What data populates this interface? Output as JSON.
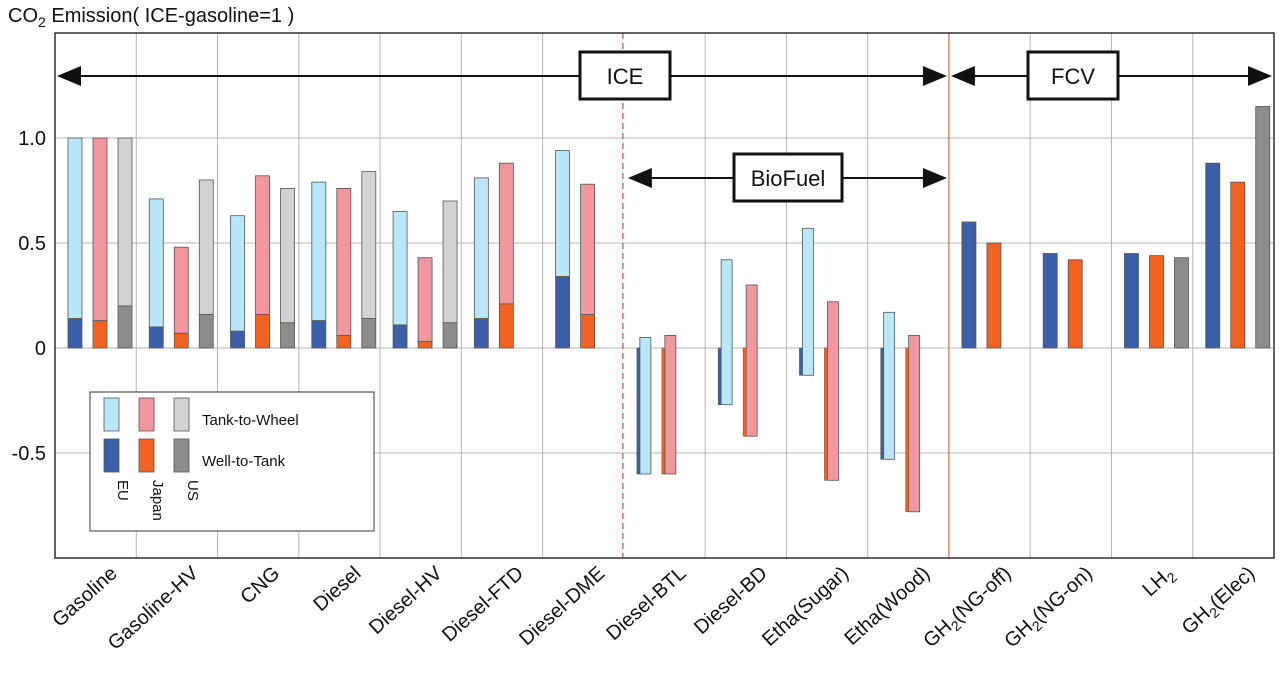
{
  "colors": {
    "eu_ttw": "#b9e6f8",
    "eu_wtt": "#3c5fa9",
    "jp_ttw": "#f2979d",
    "jp_wtt": "#f26322",
    "us_ttw": "#d2d2d2",
    "us_wtt": "#8c8c8c",
    "grid": "#b5b5b5",
    "separator": "#d9412f"
  },
  "chart_data": {
    "type": "bar",
    "title_prefix": "CO",
    "title_sub": "2",
    "title_suffix": " Emission( ICE-gasoline=1 )",
    "ylim": [
      -1.0,
      1.5
    ],
    "yticks": [
      {
        "value": 1.0,
        "label": "1.0"
      },
      {
        "value": 0.5,
        "label": "0.5"
      },
      {
        "value": 0,
        "label": "0"
      },
      {
        "value": -0.5,
        "label": "-0.5"
      }
    ],
    "categories": [
      {
        "pre": "Gasoline",
        "sub": "",
        "post": ""
      },
      {
        "pre": "Gasoline-HV",
        "sub": "",
        "post": ""
      },
      {
        "pre": "CNG",
        "sub": "",
        "post": ""
      },
      {
        "pre": "Diesel",
        "sub": "",
        "post": ""
      },
      {
        "pre": "Diesel-HV",
        "sub": "",
        "post": ""
      },
      {
        "pre": "Diesel-FTD",
        "sub": "",
        "post": ""
      },
      {
        "pre": "Diesel-DME",
        "sub": "",
        "post": ""
      },
      {
        "pre": "Diesel-BTL",
        "sub": "",
        "post": ""
      },
      {
        "pre": "Diesel-BD",
        "sub": "",
        "post": ""
      },
      {
        "pre": "Etha(Sugar)",
        "sub": "",
        "post": ""
      },
      {
        "pre": "Etha(Wood)",
        "sub": "",
        "post": ""
      },
      {
        "pre": "GH",
        "sub": "2",
        "post": "(NG-off)"
      },
      {
        "pre": "GH",
        "sub": "2",
        "post": "(NG-on)"
      },
      {
        "pre": "LH",
        "sub": "2",
        "post": ""
      },
      {
        "pre": "GH",
        "sub": "2",
        "post": "(Elec)"
      }
    ],
    "regions": [
      "EU",
      "Japan",
      "US"
    ],
    "components": [
      "Well-to-Tank",
      "Tank-to-Wheel"
    ],
    "bars": [
      [
        {
          "wtt": 0.14,
          "total": 1.0
        },
        {
          "wtt": 0.13,
          "total": 1.0
        },
        {
          "wtt": 0.2,
          "total": 1.0
        }
      ],
      [
        {
          "wtt": 0.1,
          "total": 0.71
        },
        {
          "wtt": 0.07,
          "total": 0.48
        },
        {
          "wtt": 0.16,
          "total": 0.8
        }
      ],
      [
        {
          "wtt": 0.08,
          "total": 0.63
        },
        {
          "wtt": 0.16,
          "total": 0.82
        },
        {
          "wtt": 0.12,
          "total": 0.76
        }
      ],
      [
        {
          "wtt": 0.13,
          "total": 0.79
        },
        {
          "wtt": 0.06,
          "total": 0.76
        },
        {
          "wtt": 0.14,
          "total": 0.84
        }
      ],
      [
        {
          "wtt": 0.11,
          "total": 0.65
        },
        {
          "wtt": 0.03,
          "total": 0.43
        },
        {
          "wtt": 0.12,
          "total": 0.7
        }
      ],
      [
        {
          "wtt": 0.14,
          "total": 0.81
        },
        {
          "wtt": 0.21,
          "total": 0.88
        },
        null
      ],
      [
        {
          "wtt": 0.34,
          "total": 0.94
        },
        {
          "wtt": 0.16,
          "total": 0.78
        },
        null
      ],
      [
        {
          "wtt": -0.6,
          "total": 0.05
        },
        {
          "wtt": -0.6,
          "total": 0.06
        },
        null
      ],
      [
        {
          "wtt": -0.27,
          "total": 0.42
        },
        {
          "wtt": -0.42,
          "total": 0.3
        },
        null
      ],
      [
        {
          "wtt": -0.13,
          "total": 0.57
        },
        {
          "wtt": -0.63,
          "total": 0.22
        },
        null
      ],
      [
        {
          "wtt": -0.53,
          "total": 0.17
        },
        {
          "wtt": -0.78,
          "total": 0.06
        },
        null
      ],
      [
        {
          "wtt": 0.6,
          "total": 0.6
        },
        {
          "wtt": 0.5,
          "total": 0.5
        },
        null
      ],
      [
        {
          "wtt": 0.45,
          "total": 0.45
        },
        {
          "wtt": 0.42,
          "total": 0.42
        },
        null
      ],
      [
        {
          "wtt": 0.45,
          "total": 0.45
        },
        {
          "wtt": 0.44,
          "total": 0.44
        },
        {
          "wtt": 0.43,
          "total": 0.43
        }
      ],
      [
        {
          "wtt": 0.88,
          "total": 0.88
        },
        {
          "wtt": 0.79,
          "total": 0.79
        },
        {
          "wtt": 1.15,
          "total": 1.15
        }
      ]
    ],
    "annotations": [
      {
        "label": "ICE",
        "from": 0,
        "to": 11
      },
      {
        "label": "BioFuel",
        "from": 7,
        "to": 11
      },
      {
        "label": "FCV",
        "from": 11,
        "to": 15
      }
    ],
    "legend": {
      "ttw_label": "Tank-to-Wheel",
      "wtt_label": "Well-to-Tank",
      "region_labels": [
        "EU",
        "Japan",
        "US"
      ],
      "placement": "bottom-left"
    },
    "grid": true
  }
}
